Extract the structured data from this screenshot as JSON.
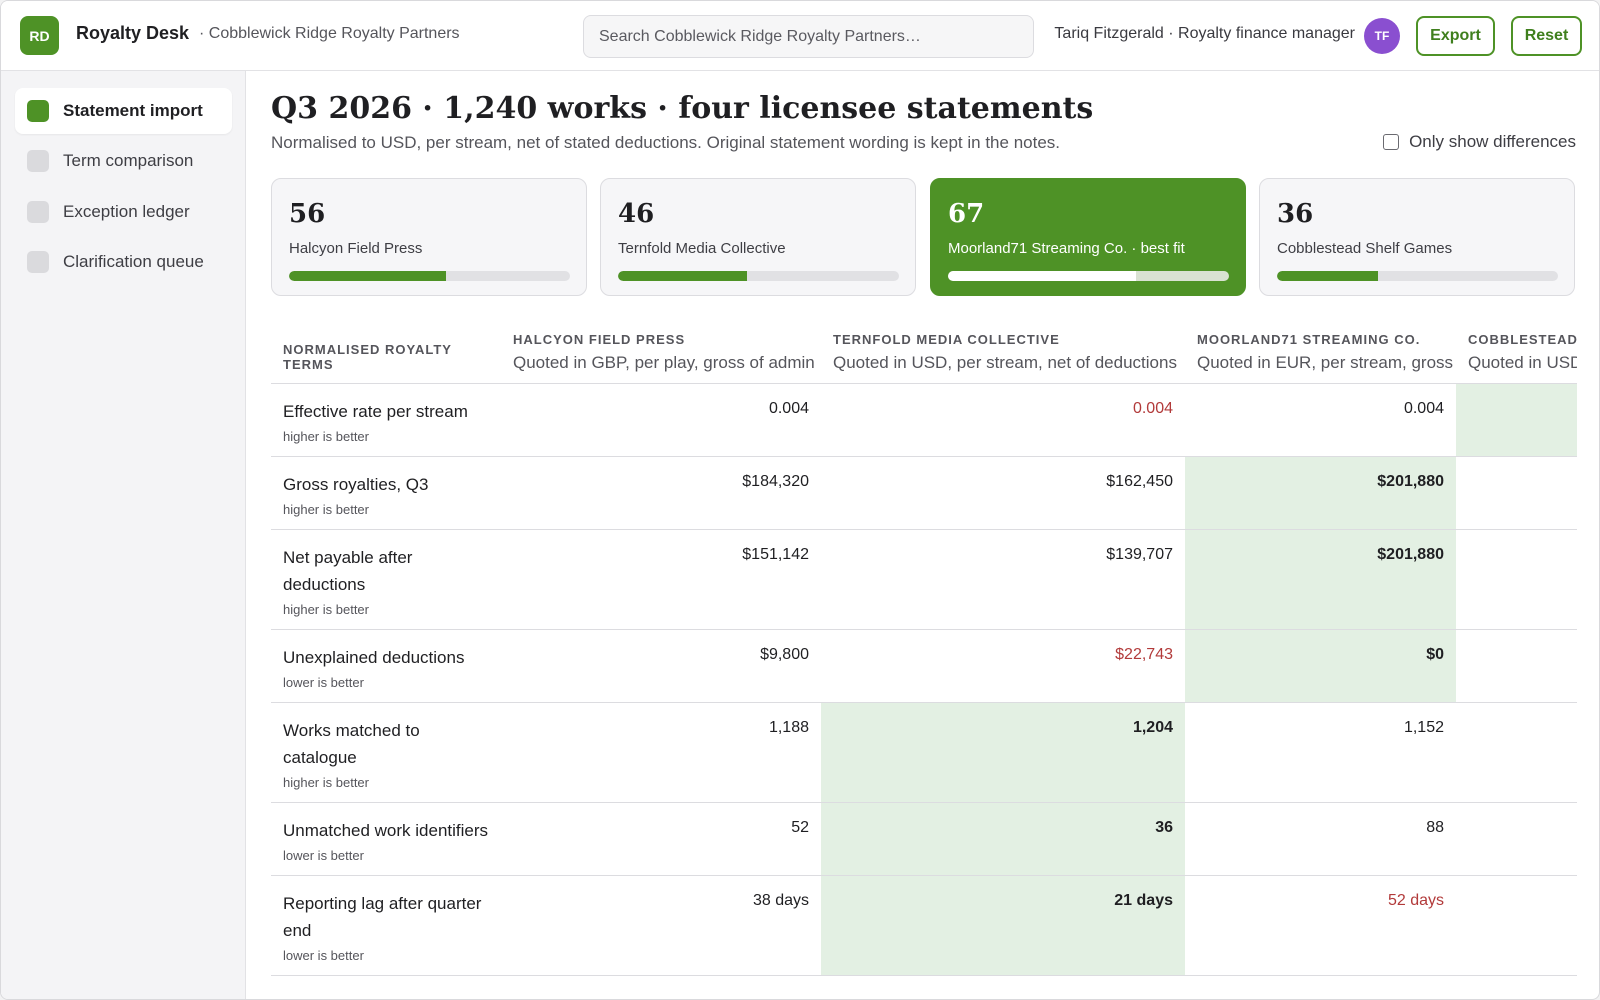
{
  "header": {
    "logo_initials": "RD",
    "app_name": "Royalty Desk",
    "org_name": "· Cobblewick Ridge Royalty Partners",
    "search_placeholder": "Search Cobblewick Ridge Royalty Partners…",
    "user": "Tariq Fitzgerald · Royalty finance manager",
    "avatar_initials": "TF",
    "export_label": "Export",
    "reset_label": "Reset"
  },
  "sidebar": {
    "items": [
      {
        "label": "Statement import",
        "active": true
      },
      {
        "label": "Term comparison",
        "active": false
      },
      {
        "label": "Exception ledger",
        "active": false
      },
      {
        "label": "Clarification queue",
        "active": false
      }
    ]
  },
  "main": {
    "title": "Q3 2026 · 1,240 works · four licensee statements",
    "subtitle": "Normalised to USD, per stream, net of stated deductions. Original statement wording is kept in the notes.",
    "only_differences_label": "Only show differences",
    "cards": [
      {
        "score": "56",
        "name": "Halcyon Field Press",
        "fill": 0.56,
        "best": false
      },
      {
        "score": "46",
        "name": "Ternfold Media Collective",
        "fill": 0.46,
        "best": false
      },
      {
        "score": "67",
        "name": "Moorland71 Streaming Co. · best fit",
        "fill": 0.67,
        "best": true
      },
      {
        "score": "36",
        "name": "Cobblestead Shelf Games",
        "fill": 0.36,
        "best": false
      }
    ]
  },
  "table": {
    "terms_header": "NORMALISED ROYALTY TERMS",
    "columns": [
      {
        "name": "HALCYON FIELD PRESS",
        "desc": "Quoted in GBP, per play, gross of admin"
      },
      {
        "name": "TERNFOLD MEDIA COLLECTIVE",
        "desc": "Quoted in USD, per stream, net of deductions"
      },
      {
        "name": "MOORLAND71 STREAMING CO.",
        "desc": "Quoted in EUR, per stream, gross"
      },
      {
        "name": "COBBLESTEAD SHELF GAMES",
        "desc": "Quoted in USD"
      }
    ],
    "rows": [
      {
        "label": "Effective rate per stream",
        "hint": "higher is better",
        "values": [
          {
            "v": "0.004",
            "s": ""
          },
          {
            "v": "0.004",
            "s": "worst"
          },
          {
            "v": "0.004",
            "s": ""
          },
          {
            "v": "",
            "s": "best"
          }
        ]
      },
      {
        "label": "Gross royalties, Q3",
        "hint": "higher is better",
        "values": [
          {
            "v": "$184,320",
            "s": ""
          },
          {
            "v": "$162,450",
            "s": ""
          },
          {
            "v": "$201,880",
            "s": "best"
          },
          {
            "v": "",
            "s": ""
          }
        ]
      },
      {
        "label": "Net payable after deductions",
        "hint": "higher is better",
        "values": [
          {
            "v": "$151,142",
            "s": ""
          },
          {
            "v": "$139,707",
            "s": ""
          },
          {
            "v": "$201,880",
            "s": "best"
          },
          {
            "v": "",
            "s": ""
          }
        ]
      },
      {
        "label": "Unexplained deductions",
        "hint": "lower is better",
        "values": [
          {
            "v": "$9,800",
            "s": ""
          },
          {
            "v": "$22,743",
            "s": "worst"
          },
          {
            "v": "$0",
            "s": "best"
          },
          {
            "v": "",
            "s": ""
          }
        ]
      },
      {
        "label": "Works matched to catalogue",
        "hint": "higher is better",
        "values": [
          {
            "v": "1,188",
            "s": ""
          },
          {
            "v": "1,204",
            "s": "best"
          },
          {
            "v": "1,152",
            "s": ""
          },
          {
            "v": "",
            "s": ""
          }
        ]
      },
      {
        "label": "Unmatched work identifiers",
        "hint": "lower is better",
        "values": [
          {
            "v": "52",
            "s": ""
          },
          {
            "v": "36",
            "s": "best"
          },
          {
            "v": "88",
            "s": ""
          },
          {
            "v": "",
            "s": ""
          }
        ]
      },
      {
        "label": "Reporting lag after quarter end",
        "hint": "lower is better",
        "values": [
          {
            "v": "38 days",
            "s": ""
          },
          {
            "v": "21 days",
            "s": "best"
          },
          {
            "v": "52 days",
            "s": "worst"
          },
          {
            "v": "",
            "s": ""
          }
        ]
      }
    ]
  },
  "colors": {
    "accent": "#4e9226",
    "best_cell": "#e3f0e3",
    "worst_text": "#b23a3a",
    "avatar": "#8a4fd0"
  }
}
